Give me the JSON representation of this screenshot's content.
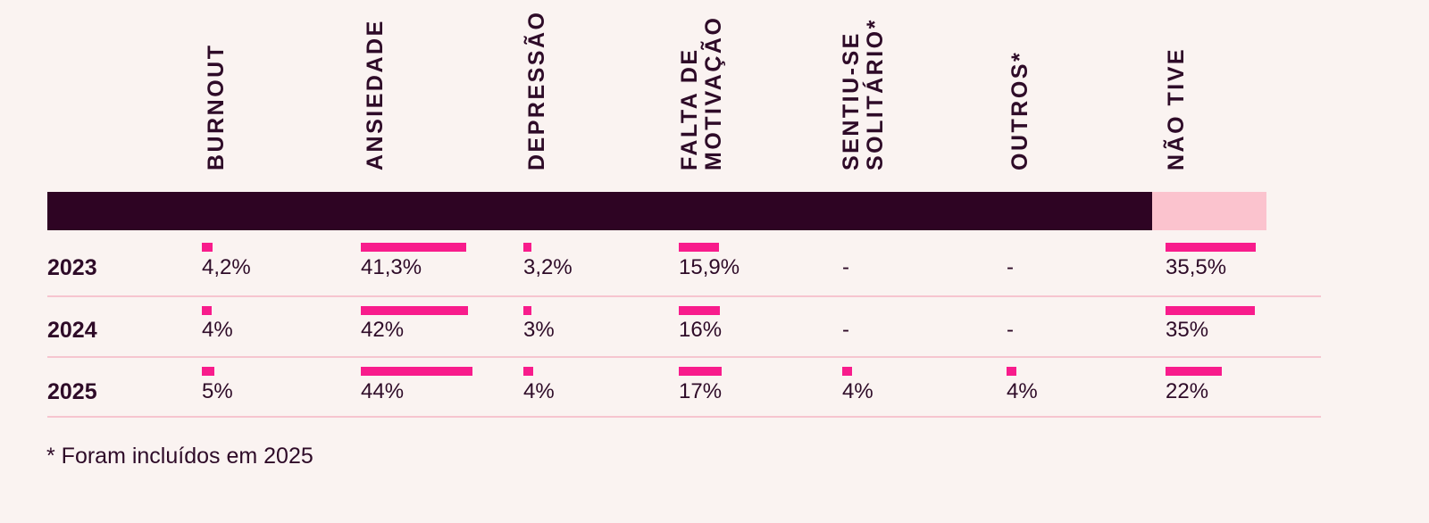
{
  "colors": {
    "background": "#FAF3F1",
    "ink": "#2E0B28",
    "header_band_dark": "#2E0423",
    "header_band_light_pink": "#FBC3CE",
    "bar_hot_pink": "#F81C8C",
    "row_divider_pink": "#F6C5CF"
  },
  "columns": [
    {
      "label": "BURNOUT"
    },
    {
      "label": "ANSIEDADE"
    },
    {
      "label": "DEPRESSÃO"
    },
    {
      "label": "FALTA DE\nMOTIVAÇÃO"
    },
    {
      "label": "SENTIU-SE\nSOLITÁRIO*"
    },
    {
      "label": "OUTROS*"
    },
    {
      "label": "NÃO TIVE"
    }
  ],
  "rows": [
    {
      "label": "2023",
      "values": [
        "4,2%",
        "41,3%",
        "3,2%",
        "15,9%",
        "-",
        "-",
        "35,5%"
      ],
      "pcts": [
        4.2,
        41.3,
        3.2,
        15.9,
        null,
        null,
        35.5
      ]
    },
    {
      "label": "2024",
      "values": [
        "4%",
        "42%",
        "3%",
        "16%",
        "-",
        "-",
        "35%"
      ],
      "pcts": [
        4,
        42,
        3,
        16,
        null,
        null,
        35
      ]
    },
    {
      "label": "2025",
      "values": [
        "5%",
        "44%",
        "4%",
        "17%",
        "4%",
        "4%",
        "22%"
      ],
      "pcts": [
        5,
        44,
        4,
        17,
        4,
        4,
        22
      ]
    }
  ],
  "footnote": "* Foram incluídos em 2025",
  "chart_data": {
    "type": "bar",
    "title": "",
    "categories": [
      "BURNOUT",
      "ANSIEDADE",
      "DEPRESSÃO",
      "FALTA DE MOTIVAÇÃO",
      "SENTIU-SE SOLITÁRIO*",
      "OUTROS*",
      "NÃO TIVE"
    ],
    "series": [
      {
        "name": "2023",
        "values": [
          4.2,
          41.3,
          3.2,
          15.9,
          null,
          null,
          35.5
        ]
      },
      {
        "name": "2024",
        "values": [
          4,
          42,
          3,
          16,
          null,
          null,
          35
        ]
      },
      {
        "name": "2025",
        "values": [
          5,
          44,
          4,
          17,
          4,
          4,
          22
        ]
      }
    ],
    "value_labels": [
      [
        "4,2%",
        "41,3%",
        "3,2%",
        "15,9%",
        "-",
        "-",
        "35,5%"
      ],
      [
        "4%",
        "42%",
        "3%",
        "16%",
        "-",
        "-",
        "35%"
      ],
      [
        "5%",
        "44%",
        "4%",
        "17%",
        "4%",
        "4%",
        "22%"
      ]
    ],
    "unit": "%",
    "ylim": [
      0,
      50
    ],
    "grid": false,
    "legend_position": "left-row-labels",
    "annotations": [
      "* Foram incluídos em 2025"
    ],
    "notes": "null values shown as dash; categories marked * were added in 2025"
  }
}
